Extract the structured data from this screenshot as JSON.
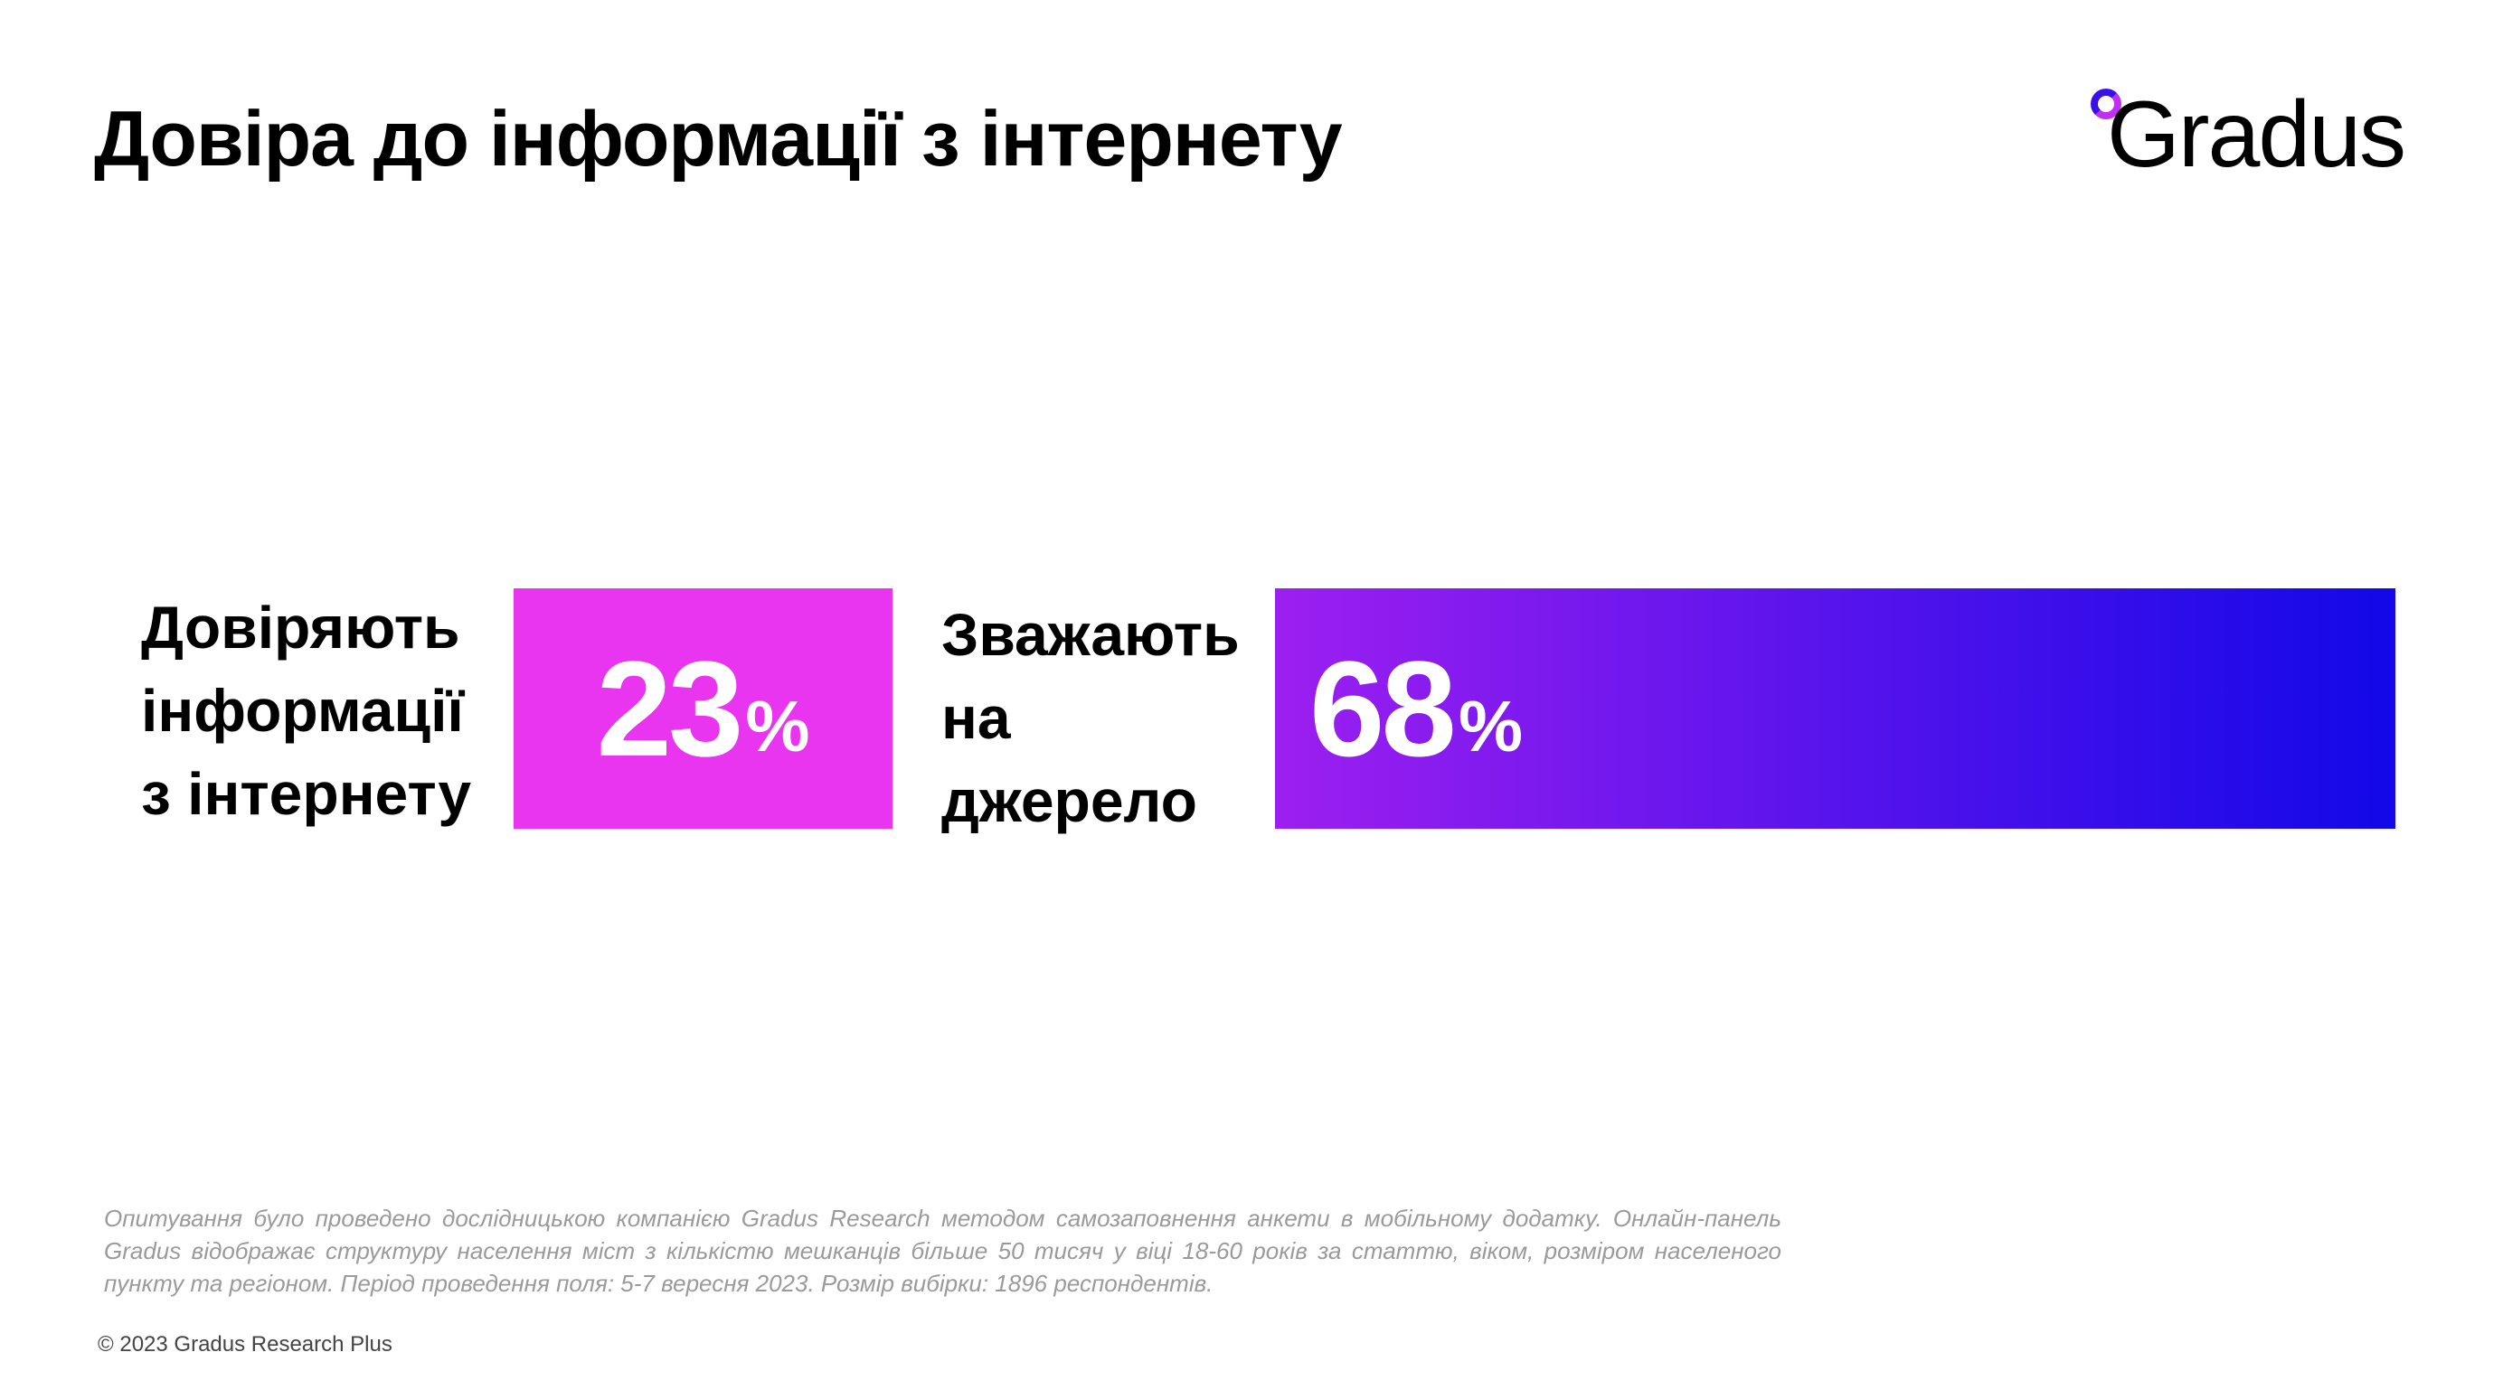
{
  "title": "Довіра до інформації з інтернету",
  "logo": {
    "text": "Gradus"
  },
  "chart_data": {
    "type": "bar",
    "categories": [
      "Довіряють інформації з інтернету",
      "Зважають на джерело"
    ],
    "values": [
      23,
      68
    ],
    "value_labels": [
      "23",
      "68"
    ],
    "unit": "%",
    "colors": [
      "#e935f0",
      "#9d1ff0",
      "#1208e8"
    ]
  },
  "footnote": "Опитування було проведено дослідницькою компанією Gradus Research методом самозаповнення анкети в мобільному додатку. Онлайн-панель Gradus відображає структуру населення міст з кількістю мешканців більше 50 тисяч у віці 18-60 років за статтю, віком, розміром населеного пункту та регіоном. Період проведення поля: 5-7 вересня 2023. Розмір вибірки: 1896 респондентів.",
  "copyright": "© 2023 Gradus Research Plus"
}
